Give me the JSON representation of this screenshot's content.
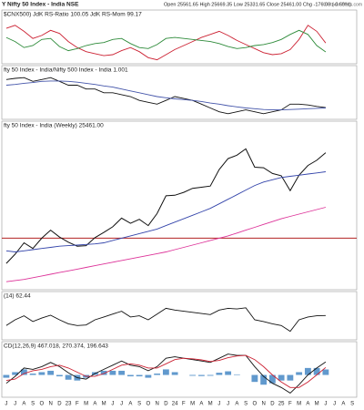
{
  "header": {
    "symbol": "Y Nifty 50 Index - India NSE",
    "quote": "Open 25561.65 High 25669.35 Low 25331.65 Close 25461.00 Chg -176.00 (-0.69%)",
    "source": "© StockCharts.com"
  },
  "x_axis_labels": [
    "J",
    "J",
    "A",
    "S",
    "O",
    "N",
    "D",
    "23",
    "F",
    "M",
    "A",
    "M",
    "J",
    "J",
    "A",
    "S",
    "O",
    "N",
    "D",
    "24",
    "F",
    "M",
    "A",
    "M",
    "J",
    "J",
    "A",
    "S",
    "O",
    "N",
    "D",
    "25",
    "F",
    "M",
    "A",
    "M",
    "J",
    "J",
    "A",
    "S"
  ],
  "chart_data": [
    {
      "type": "line",
      "title": "$CNX500) JdK RS-Ratio 100.05 JdK RS-Mom 99.17",
      "ylim": [
        98,
        102.5
      ],
      "series": [
        {
          "name": "JdK RS-Ratio",
          "color": "#cc2233",
          "values": [
            101.5,
            101.8,
            101.2,
            100.5,
            100.8,
            101.3,
            101.0,
            100.2,
            99.6,
            99.2,
            99.0,
            98.8,
            98.9,
            99.3,
            99.6,
            99.2,
            98.6,
            98.4,
            98.9,
            99.4,
            99.8,
            100.2,
            100.6,
            100.9,
            101.2,
            100.8,
            100.3,
            99.9,
            99.5,
            99.1,
            98.9,
            99.0,
            99.4,
            100.4,
            101.8,
            101.2,
            100.05,
            null,
            null,
            null
          ]
        },
        {
          "name": "JdK RS-Mom",
          "color": "#2e8b3a",
          "values": [
            100.6,
            100.2,
            99.6,
            99.8,
            100.4,
            100.5,
            99.7,
            99.3,
            99.5,
            99.8,
            100.0,
            100.1,
            100.4,
            100.5,
            100.0,
            99.6,
            99.5,
            99.9,
            100.5,
            100.6,
            100.5,
            100.4,
            100.3,
            100.2,
            100.0,
            99.7,
            99.5,
            99.6,
            99.8,
            99.9,
            100.1,
            100.4,
            100.9,
            101.3,
            100.9,
            99.8,
            99.17,
            null,
            null,
            null
          ]
        }
      ]
    },
    {
      "type": "line",
      "title": "fty 50 Index - India/Nifty 500 Index - India 1.001",
      "ylim": [
        0.97,
        1.09
      ],
      "series": [
        {
          "name": "Ratio",
          "color": "#111111",
          "values": [
            1.075,
            1.078,
            1.08,
            1.07,
            1.075,
            1.08,
            1.07,
            1.06,
            1.06,
            1.05,
            1.05,
            1.04,
            1.04,
            1.035,
            1.03,
            1.02,
            1.015,
            1.01,
            1.02,
            1.03,
            1.025,
            1.02,
            1.01,
            1.0,
            0.99,
            0.985,
            0.99,
            0.995,
            0.99,
            0.985,
            0.99,
            0.995,
            1.01,
            1.01,
            1.008,
            1.004,
            1.001,
            null,
            null,
            null
          ]
        },
        {
          "name": "MA",
          "color": "#4455aa",
          "values": [
            1.06,
            1.062,
            1.065,
            1.067,
            1.07,
            1.071,
            1.071,
            1.07,
            1.068,
            1.065,
            1.062,
            1.058,
            1.055,
            1.05,
            1.045,
            1.04,
            1.035,
            1.03,
            1.027,
            1.024,
            1.022,
            1.02,
            1.017,
            1.013,
            1.01,
            1.006,
            1.003,
            1.0,
            0.998,
            0.996,
            0.995,
            0.995,
            0.996,
            0.997,
            0.998,
            0.999,
            1.0,
            null,
            null,
            null
          ]
        }
      ]
    },
    {
      "type": "line",
      "title": "fty 50 Index - India (Weekly) 25461.00",
      "ylim": [
        13500,
        27500
      ],
      "reference_line": 18000,
      "reference_color": "#b22222",
      "series": [
        {
          "name": "Price",
          "color": "#111111",
          "values": [
            15800,
            16600,
            17600,
            17100,
            18000,
            18700,
            18100,
            17650,
            17300,
            17350,
            18050,
            18500,
            19000,
            19750,
            19300,
            19650,
            19100,
            20150,
            21700,
            21750,
            22000,
            22350,
            22450,
            22550,
            24000,
            24950,
            25250,
            25800,
            24200,
            24150,
            23650,
            23450,
            22150,
            23500,
            24350,
            24800,
            25461,
            null,
            null,
            null
          ]
        },
        {
          "name": "MA40",
          "color": "#3344aa",
          "values": [
            16900,
            16800,
            16900,
            17000,
            17100,
            17200,
            17300,
            17350,
            17400,
            17450,
            17500,
            17600,
            17800,
            18000,
            18200,
            18400,
            18600,
            18800,
            19100,
            19400,
            19700,
            20000,
            20300,
            20600,
            21000,
            21400,
            21800,
            22200,
            22600,
            22900,
            23100,
            23300,
            23400,
            23500,
            23600,
            23700,
            23800,
            null,
            null,
            null
          ]
        },
        {
          "name": "MA200",
          "color": "#dd3399",
          "values": [
            14200,
            14300,
            14400,
            14550,
            14700,
            14850,
            15000,
            15150,
            15300,
            15450,
            15600,
            15750,
            15900,
            16050,
            16200,
            16350,
            16500,
            16650,
            16800,
            17000,
            17200,
            17400,
            17600,
            17800,
            18000,
            18200,
            18450,
            18700,
            18950,
            19200,
            19450,
            19700,
            19900,
            20100,
            20300,
            20500,
            20700,
            null,
            null,
            null
          ]
        }
      ]
    },
    {
      "type": "line",
      "title": "(14) 62.44",
      "ylim": [
        20,
        90
      ],
      "series": [
        {
          "name": "RSI",
          "color": "#111111",
          "values": [
            45,
            55,
            62,
            52,
            58,
            63,
            55,
            48,
            45,
            46,
            55,
            60,
            65,
            70,
            60,
            62,
            55,
            65,
            75,
            72,
            70,
            68,
            66,
            64,
            72,
            75,
            74,
            76,
            55,
            52,
            48,
            45,
            35,
            55,
            60,
            62,
            62.44,
            null,
            null,
            null
          ]
        }
      ]
    },
    {
      "type": "line",
      "title": "CD(12,26,9) 467.018, 270.374, 196.643",
      "ylim": [
        -800,
        900
      ],
      "series": [
        {
          "name": "Histogram",
          "kind": "histogram",
          "color": "#3a7fc0",
          "values": [
            -100,
            100,
            200,
            50,
            100,
            150,
            -50,
            -170,
            -200,
            -100,
            100,
            150,
            150,
            150,
            -50,
            -50,
            -100,
            50,
            200,
            100,
            0,
            -30,
            -40,
            -30,
            80,
            130,
            20,
            0,
            -250,
            -350,
            -300,
            -200,
            -200,
            100,
            250,
            250,
            196.643,
            null,
            null,
            null
          ]
        },
        {
          "name": "MACD",
          "color": "#111111",
          "values": [
            -300,
            -50,
            250,
            200,
            300,
            450,
            300,
            80,
            -100,
            -150,
            50,
            200,
            350,
            500,
            350,
            300,
            150,
            300,
            600,
            650,
            600,
            550,
            500,
            450,
            600,
            750,
            700,
            700,
            300,
            -50,
            -300,
            -450,
            -650,
            -350,
            0,
            250,
            467.018,
            null,
            null,
            null
          ]
        },
        {
          "name": "Signal",
          "color": "#cc2233",
          "values": [
            -200,
            -150,
            50,
            150,
            200,
            300,
            350,
            250,
            100,
            -50,
            -50,
            50,
            200,
            350,
            400,
            350,
            250,
            250,
            400,
            550,
            600,
            580,
            540,
            480,
            520,
            620,
            680,
            700,
            550,
            300,
            0,
            -250,
            -450,
            -450,
            -250,
            0,
            270.374,
            null,
            null,
            null
          ]
        }
      ]
    }
  ]
}
